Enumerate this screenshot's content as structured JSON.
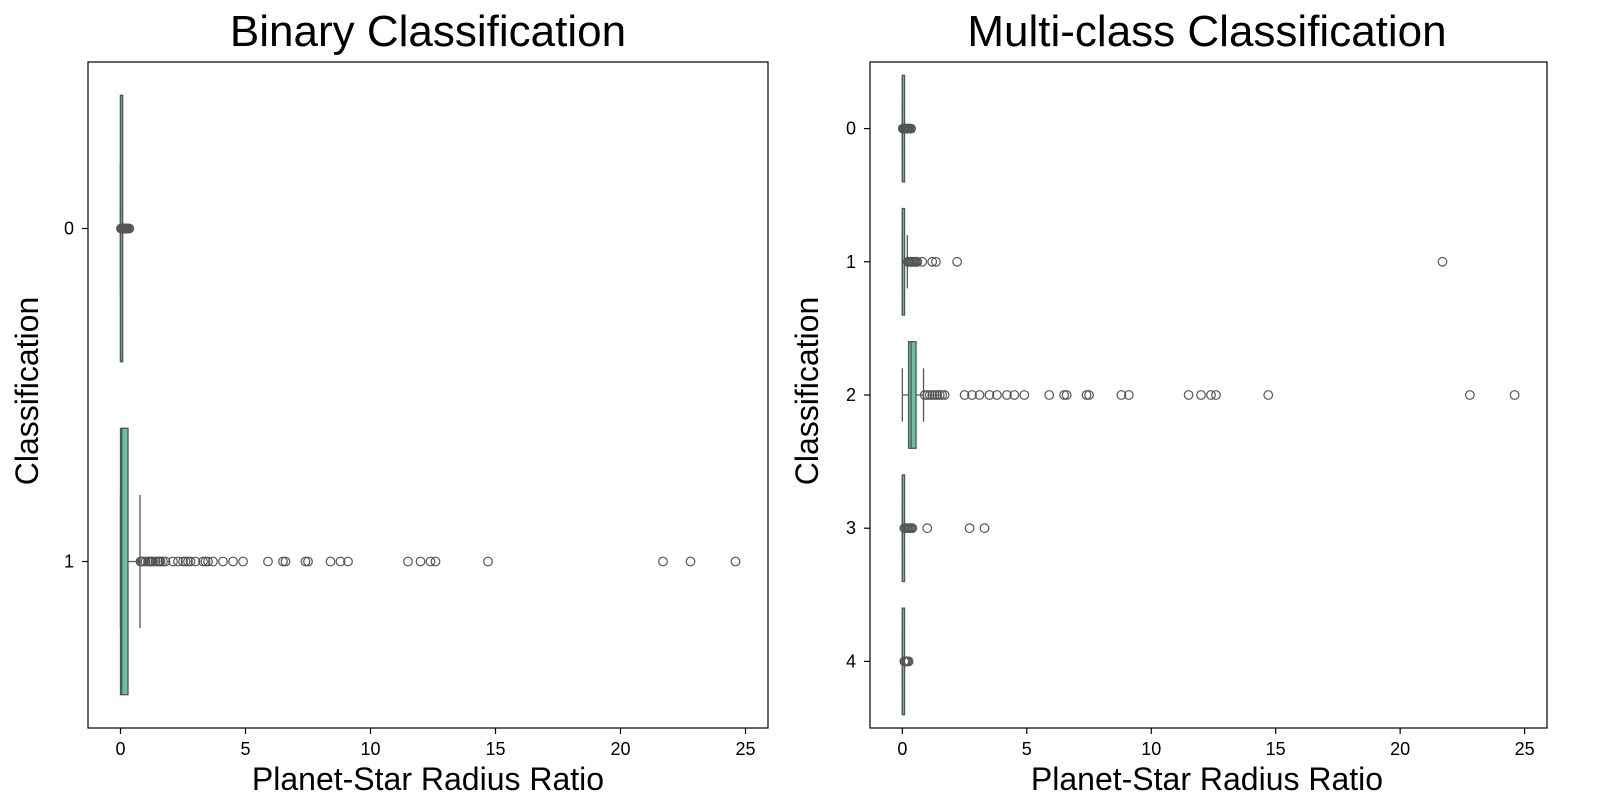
{
  "chart_data": [
    {
      "type": "boxplot",
      "orientation": "horizontal",
      "title": "Binary Classification",
      "xlabel": "Planet-Star Radius Ratio",
      "ylabel": "Classification",
      "xlim": [
        -1.3,
        25.9
      ],
      "xticks": [
        0,
        5,
        10,
        15,
        20,
        25
      ],
      "categories": [
        "0",
        "1"
      ],
      "grid": false,
      "box_color": "#66c2a5",
      "line_color": "#555555",
      "boxes": [
        {
          "category": "0",
          "whislo": 0.0,
          "q1": 0.0,
          "median": 0.0,
          "q3": 0.0,
          "whishi": 0.0,
          "fliers": [
            0.02,
            0.05,
            0.08,
            0.1,
            0.12,
            0.15,
            0.18,
            0.2,
            0.22,
            0.25,
            0.28,
            0.3,
            0.35
          ]
        },
        {
          "category": "1",
          "whislo": 0.0,
          "q1": 0.0,
          "median": 0.05,
          "q3": 0.3,
          "whishi": 0.78,
          "fliers": [
            0.8,
            0.85,
            0.9,
            1.0,
            1.1,
            1.15,
            1.2,
            1.25,
            1.3,
            1.4,
            1.5,
            1.55,
            1.6,
            1.7,
            1.8,
            2.1,
            2.3,
            2.5,
            2.6,
            2.7,
            2.8,
            3.0,
            3.3,
            3.4,
            3.5,
            3.7,
            4.1,
            4.5,
            4.9,
            5.9,
            6.5,
            6.6,
            7.4,
            7.5,
            8.4,
            8.8,
            9.1,
            11.5,
            12.0,
            12.4,
            12.6,
            14.7,
            21.7,
            22.8,
            24.6
          ]
        }
      ]
    },
    {
      "type": "boxplot",
      "orientation": "horizontal",
      "title": "Multi-class Classification",
      "xlabel": "Planet-Star Radius Ratio",
      "ylabel": "Classification",
      "xlim": [
        -1.3,
        25.9
      ],
      "xticks": [
        0,
        5,
        10,
        15,
        20,
        25
      ],
      "categories": [
        "0",
        "1",
        "2",
        "3",
        "4"
      ],
      "grid": false,
      "box_color": "#66c2a5",
      "line_color": "#555555",
      "boxes": [
        {
          "category": "0",
          "whislo": 0.0,
          "q1": 0.0,
          "median": 0.0,
          "q3": 0.0,
          "whishi": 0.0,
          "fliers": [
            0.02,
            0.05,
            0.08,
            0.1,
            0.12,
            0.15,
            0.18,
            0.2,
            0.22,
            0.25,
            0.28,
            0.3,
            0.35
          ]
        },
        {
          "category": "1",
          "whislo": 0.0,
          "q1": 0.0,
          "median": 0.0,
          "q3": 0.05,
          "whishi": 0.2,
          "fliers": [
            0.22,
            0.25,
            0.3,
            0.35,
            0.4,
            0.45,
            0.5,
            0.55,
            0.6,
            0.8,
            1.2,
            1.35,
            2.2,
            21.7
          ]
        },
        {
          "category": "2",
          "whislo": 0.0,
          "q1": 0.25,
          "median": 0.35,
          "q3": 0.55,
          "whishi": 0.85,
          "fliers": [
            0.9,
            1.0,
            1.1,
            1.2,
            1.3,
            1.4,
            1.5,
            1.6,
            1.7,
            2.5,
            2.8,
            3.1,
            3.5,
            3.8,
            4.2,
            4.5,
            4.9,
            5.9,
            6.5,
            6.6,
            7.4,
            7.5,
            8.8,
            9.1,
            11.5,
            12.0,
            12.4,
            12.6,
            14.7,
            22.8,
            24.6
          ]
        },
        {
          "category": "3",
          "whislo": 0.0,
          "q1": 0.0,
          "median": 0.0,
          "q3": 0.02,
          "whishi": 0.05,
          "fliers": [
            0.08,
            0.1,
            0.15,
            0.2,
            0.25,
            0.3,
            0.35,
            0.4,
            1.0,
            2.7,
            3.3
          ]
        },
        {
          "category": "4",
          "whislo": 0.0,
          "q1": 0.0,
          "median": 0.0,
          "q3": 0.02,
          "whishi": 0.05,
          "fliers": [
            0.08,
            0.1,
            0.15,
            0.2,
            0.25
          ]
        }
      ]
    }
  ]
}
